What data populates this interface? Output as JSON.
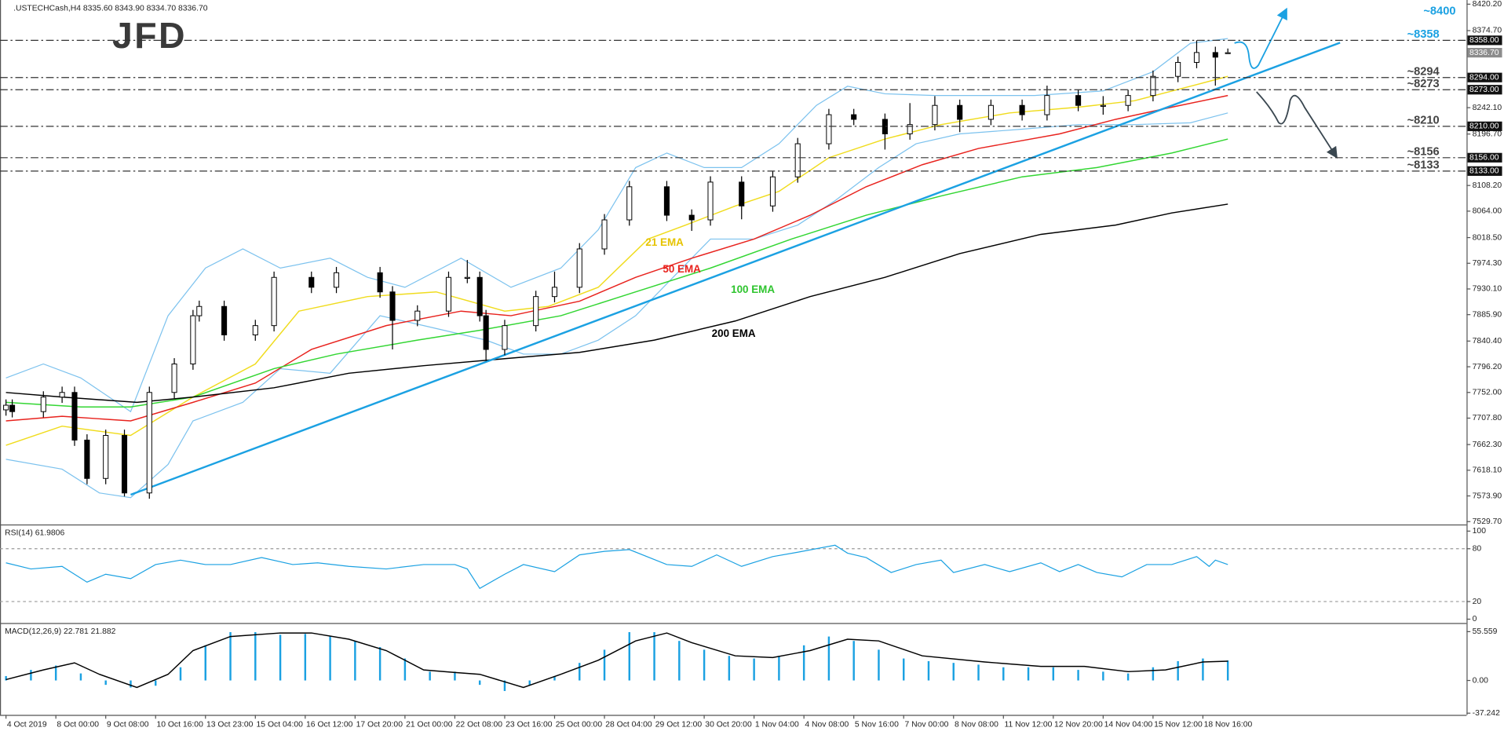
{
  "chart_data": [
    {
      "type": "candlestick",
      "title": ".USTECHCash,H4  8335.60 8343.90 8334.70 8336.70",
      "logo": "JFD",
      "target_label": "~8400",
      "x": [
        0,
        1,
        6,
        9,
        11,
        13,
        16,
        19,
        23,
        27,
        30,
        31,
        35,
        40,
        43,
        49,
        53,
        60,
        62,
        66,
        71,
        74,
        76,
        77,
        80,
        85,
        88,
        92,
        96,
        100,
        106,
        110,
        113,
        118,
        123,
        127,
        132,
        136,
        141,
        145,
        149,
        153,
        158,
        163,
        167,
        172,
        176,
        180,
        184,
        188,
        191,
        194,
        196
      ],
      "open": [
        7722,
        7730,
        7719,
        7744,
        7752,
        7670,
        7604,
        7678,
        7579,
        7752,
        7801,
        7884,
        7900,
        7851,
        7867,
        7950,
        7933,
        7958,
        7925,
        7876,
        7892,
        7950,
        7950,
        7884,
        7826,
        7867,
        7917,
        7933,
        7999,
        8049,
        8106,
        8057,
        8049,
        8114,
        8073,
        8123,
        8180,
        8230,
        8222,
        8197,
        8213,
        8246,
        8222,
        8246,
        8230,
        8263,
        8246,
        8246,
        8263,
        8296,
        8320,
        8337,
        8335.6
      ],
      "high": [
        7740,
        7740,
        7754,
        7762,
        7762,
        7680,
        7688,
        7688,
        7762,
        7811,
        7894,
        7910,
        7910,
        7877,
        7960,
        7960,
        7968,
        7968,
        7935,
        7902,
        7960,
        7980,
        7960,
        7894,
        7877,
        7927,
        7960,
        8009,
        8059,
        8116,
        8116,
        8067,
        8124,
        8124,
        8133,
        8190,
        8240,
        8240,
        8232,
        8250,
        8262,
        8256,
        8256,
        8256,
        8280,
        8273,
        8262,
        8273,
        8306,
        8330,
        8358,
        8347,
        8343.9
      ],
      "low": [
        7712,
        7709,
        7709,
        7734,
        7660,
        7594,
        7594,
        7573,
        7569,
        7742,
        7791,
        7874,
        7841,
        7841,
        7857,
        7923,
        7923,
        7915,
        7826,
        7866,
        7882,
        7940,
        7874,
        7806,
        7816,
        7857,
        7907,
        7923,
        7989,
        8039,
        8047,
        8030,
        8039,
        8050,
        8063,
        8113,
        8170,
        8212,
        8170,
        8187,
        8203,
        8200,
        8212,
        8220,
        8220,
        8236,
        8230,
        8236,
        8253,
        8286,
        8310,
        8280,
        8334.7
      ],
      "close": [
        7730,
        7719,
        7744,
        7752,
        7670,
        7604,
        7678,
        7579,
        7752,
        7801,
        7884,
        7900,
        7851,
        7867,
        7950,
        7933,
        7958,
        7925,
        7876,
        7892,
        7950,
        7950,
        7884,
        7826,
        7867,
        7917,
        7933,
        7999,
        8049,
        8106,
        8057,
        8049,
        8114,
        8073,
        8123,
        8180,
        8230,
        8222,
        8197,
        8213,
        8246,
        8222,
        8246,
        8230,
        8263,
        8246,
        8246,
        8263,
        8296,
        8320,
        8337,
        8329,
        8336.7
      ],
      "up_color": "#ffffff",
      "down_color": "#000000",
      "xlim": [
        -0.5,
        234.3
      ],
      "ylim": [
        7524.8,
        8424.1
      ],
      "yticks": [
        {
          "value": 8420.2,
          "label": "8420.20"
        },
        {
          "value": 8374.7,
          "label": "8374.70"
        },
        {
          "value": 8242.1,
          "label": "8242.10"
        },
        {
          "value": 8196.7,
          "label": "8196.70"
        },
        {
          "value": 8108.2,
          "label": "8108.20"
        },
        {
          "value": 8064,
          "label": "8064.00"
        },
        {
          "value": 8018.5,
          "label": "8018.50"
        },
        {
          "value": 7974.3,
          "label": "7974.30"
        },
        {
          "value": 7930.1,
          "label": "7930.10"
        },
        {
          "value": 7885.9,
          "label": "7885.90"
        },
        {
          "value": 7840.4,
          "label": "7840.40"
        },
        {
          "value": 7796.2,
          "label": "7796.20"
        },
        {
          "value": 7752,
          "label": "7752.00"
        },
        {
          "value": 7707.8,
          "label": "7707.80"
        },
        {
          "value": 7662.3,
          "label": "7662.30"
        },
        {
          "value": 7618.1,
          "label": "7618.10"
        },
        {
          "value": 7573.9,
          "label": "7573.90"
        },
        {
          "value": 7529.7,
          "label": "7529.70"
        }
      ],
      "xticks": [
        {
          "value": 0,
          "label": "4 Oct 2019"
        },
        {
          "value": 8,
          "label": "8 Oct 00:00"
        },
        {
          "value": 16,
          "label": "9 Oct 08:00"
        },
        {
          "value": 24,
          "label": "10 Oct 16:00"
        },
        {
          "value": 32,
          "label": "13 Oct 23:00"
        },
        {
          "value": 40,
          "label": "15 Oct 04:00"
        },
        {
          "value": 48,
          "label": "16 Oct 12:00"
        },
        {
          "value": 56,
          "label": "17 Oct 20:00"
        },
        {
          "value": 64,
          "label": "21 Oct 00:00"
        },
        {
          "value": 72,
          "label": "22 Oct 08:00"
        },
        {
          "value": 80,
          "label": "23 Oct 16:00"
        },
        {
          "value": 88,
          "label": "25 Oct 00:00"
        },
        {
          "value": 96,
          "label": "28 Oct 04:00"
        },
        {
          "value": 104,
          "label": "29 Oct 12:00"
        },
        {
          "value": 112,
          "label": "30 Oct 20:00"
        },
        {
          "value": 120,
          "label": "1 Nov 04:00"
        },
        {
          "value": 128,
          "label": "4 Nov 08:00"
        },
        {
          "value": 136,
          "label": "5 Nov 16:00"
        },
        {
          "value": 144,
          "label": "7 Nov 00:00"
        },
        {
          "value": 152,
          "label": "8 Nov 08:00"
        },
        {
          "value": 160,
          "label": "11 Nov 12:00"
        },
        {
          "value": 168,
          "label": "12 Nov 20:00"
        },
        {
          "value": 176,
          "label": "14 Nov 04:00"
        },
        {
          "value": 184,
          "label": "15 Nov 12:00"
        },
        {
          "value": 192,
          "label": "18 Nov 16:00"
        }
      ],
      "lines": [
        {
          "name": "21 EMA",
          "color": "#f0dc1e",
          "label_color": "#e6c300",
          "x": [
            0,
            9,
            20,
            30,
            40,
            47,
            58,
            69,
            80,
            87,
            95,
            103,
            109,
            117,
            124,
            132,
            141,
            150,
            161,
            172,
            181,
            190,
            196
          ],
          "values": [
            7661,
            7694,
            7678,
            7744,
            7801,
            7892,
            7917,
            7925,
            7892,
            7900,
            7933,
            8016,
            8040,
            8073,
            8098,
            8156,
            8188,
            8213,
            8233,
            8243,
            8254,
            8279,
            8296
          ]
        },
        {
          "name": "50 EMA",
          "color": "#e8231e",
          "label_color": "#e8231e",
          "x": [
            0,
            9,
            20,
            30,
            40,
            49,
            61,
            73,
            81,
            92,
            101,
            110,
            120,
            129,
            138,
            147,
            156,
            169,
            178,
            187,
            196
          ],
          "values": [
            7703,
            7711,
            7703,
            7735,
            7768,
            7826,
            7867,
            7892,
            7884,
            7909,
            7950,
            7983,
            8016,
            8057,
            8106,
            8144,
            8172,
            8197,
            8222,
            8243,
            8263
          ]
        },
        {
          "name": "100 EMA",
          "color": "#33d633",
          "label_color": "#2ec42e",
          "x": [
            0,
            12,
            20,
            30,
            43,
            53,
            66,
            76,
            89,
            101,
            113,
            126,
            138,
            150,
            163,
            175,
            187,
            196
          ],
          "values": [
            7735,
            7727,
            7727,
            7744,
            7793,
            7818,
            7842,
            7859,
            7884,
            7925,
            7966,
            8016,
            8057,
            8090,
            8123,
            8139,
            8164,
            8188
          ]
        },
        {
          "name": "200 EMA",
          "color": "#000000",
          "label_color": "#000000",
          "x": [
            0,
            9,
            21,
            30,
            43,
            55,
            67,
            80,
            92,
            104,
            117,
            129,
            141,
            153,
            166,
            178,
            187,
            196
          ],
          "values": [
            7752,
            7744,
            7735,
            7744,
            7760,
            7785,
            7798,
            7810,
            7821,
            7842,
            7875,
            7917,
            7950,
            7991,
            8024,
            8040,
            8061,
            8076
          ]
        }
      ],
      "bands": {
        "color": "#7cc2ee",
        "upper": {
          "x": [
            0,
            6,
            12,
            20,
            26,
            32,
            38,
            44,
            52,
            58,
            64,
            73,
            81,
            89,
            95,
            101,
            106,
            112,
            118,
            124,
            130,
            135,
            141,
            149,
            156,
            165,
            176,
            184,
            190,
            196
          ],
          "values": [
            7777,
            7801,
            7777,
            7719,
            7884,
            7966,
            7999,
            7966,
            7983,
            7950,
            7933,
            7983,
            7933,
            7966,
            8032,
            8139,
            8164,
            8139,
            8139,
            8180,
            8246,
            8279,
            8266,
            8263,
            8263,
            8263,
            8271,
            8304,
            8353,
            8361
          ]
        },
        "lower": {
          "x": [
            0,
            9,
            15,
            20,
            26,
            30,
            38,
            44,
            52,
            60,
            67,
            77,
            83,
            89,
            95,
            101,
            107,
            113,
            120,
            127,
            133,
            140,
            146,
            153,
            163,
            172,
            181,
            190,
            196
          ],
          "values": [
            7637,
            7620,
            7579,
            7571,
            7628,
            7703,
            7735,
            7793,
            7785,
            7884,
            7867,
            7842,
            7818,
            7818,
            7842,
            7884,
            7950,
            8016,
            8016,
            8040,
            8082,
            8139,
            8180,
            8197,
            8205,
            8213,
            8213,
            8216,
            8233
          ]
        }
      },
      "trendline": {
        "color": "#1ba1e2",
        "x": [
          20,
          214
        ],
        "values": [
          7576,
          8354
        ]
      },
      "levels": [
        {
          "value": 8358,
          "label": "8358.00",
          "annotation": "~8358",
          "color": "#1ba1e2"
        },
        {
          "value": 8294,
          "label": "8294.00",
          "annotation": "~8294",
          "color": "#444444"
        },
        {
          "value": 8273,
          "label": "8273.00",
          "annotation": "~8273",
          "color": "#444444"
        },
        {
          "value": 8210,
          "label": "8210.00",
          "annotation": "~8210",
          "color": "#444444"
        },
        {
          "value": 8156,
          "label": "8156.00",
          "annotation": "~8156",
          "color": "#444444"
        },
        {
          "value": 8133,
          "label": "8133.00",
          "annotation": "~8133",
          "color": "#444444"
        }
      ],
      "current_price": {
        "value": 8336.7,
        "label": "8336.70"
      }
    },
    {
      "type": "line",
      "title": "RSI(14) 61.9806",
      "x": [
        0,
        4,
        9,
        13,
        16,
        20,
        24,
        28,
        32,
        36,
        41,
        46,
        50,
        55,
        61,
        67,
        72,
        74,
        76,
        80,
        83,
        88,
        92,
        96,
        100,
        106,
        110,
        114,
        118,
        123,
        127,
        133,
        135,
        138,
        142,
        146,
        150,
        152,
        157,
        161,
        166,
        169,
        172,
        175,
        179,
        183,
        187,
        191,
        193,
        194,
        196
      ],
      "values": [
        64,
        57,
        60,
        42,
        51,
        46,
        62,
        67,
        62,
        62,
        70,
        62,
        64,
        60,
        57,
        62,
        62,
        57,
        35,
        51,
        62,
        54,
        73,
        77,
        79,
        62,
        60,
        73,
        60,
        71,
        76,
        84,
        75,
        70,
        53,
        62,
        67,
        53,
        62,
        54,
        64,
        54,
        62,
        53,
        48,
        62,
        62,
        71,
        60,
        67,
        62
      ],
      "color": "#1ba1e2",
      "ylim": [
        -3.3,
        104.3
      ],
      "yticks": [
        100,
        80,
        20,
        0
      ],
      "grid": true
    },
    {
      "type": "macd",
      "title": "MACD(12,26,9) 22.781 21.882",
      "histogram": {
        "color": "#1ba1e2",
        "x": [
          0,
          4,
          8,
          12,
          16,
          20,
          24,
          28,
          32,
          36,
          40,
          44,
          48,
          52,
          56,
          60,
          64,
          68,
          72,
          76,
          80,
          84,
          88,
          92,
          96,
          100,
          104,
          108,
          112,
          116,
          120,
          124,
          128,
          132,
          136,
          140,
          144,
          148,
          152,
          156,
          160,
          164,
          168,
          172,
          176,
          180,
          184,
          188,
          192,
          196
        ],
        "values": [
          5,
          12,
          17,
          8,
          -5,
          -8,
          -6,
          15,
          40,
          55,
          55,
          52,
          53,
          50,
          45,
          38,
          25,
          10,
          10,
          -5,
          -12,
          -5,
          5,
          20,
          35,
          55,
          55,
          45,
          35,
          28,
          25,
          28,
          40,
          50,
          45,
          35,
          25,
          22,
          20,
          18,
          15,
          15,
          15,
          12,
          10,
          8,
          15,
          22,
          25,
          22.781
        ]
      },
      "signal": {
        "color": "#000000",
        "x": [
          0,
          6,
          11,
          15,
          21,
          26,
          30,
          36,
          44,
          49,
          55,
          61,
          67,
          72,
          76,
          83,
          89,
          95,
          101,
          106,
          110,
          117,
          123,
          129,
          135,
          140,
          147,
          157,
          166,
          173,
          180,
          186,
          192,
          196
        ],
        "values": [
          1,
          12,
          20,
          7,
          -8,
          7,
          34,
          50,
          54,
          54,
          47,
          34,
          12,
          9,
          7,
          -8,
          7,
          23,
          45,
          54,
          43,
          28,
          26,
          34,
          47,
          45,
          28,
          21,
          16,
          16,
          10,
          12,
          21,
          21.882
        ]
      },
      "ylim": [
        -40.3,
        62.1
      ],
      "yticks": [
        55.559,
        {
          "value": 0,
          "label": "0.00"
        },
        -37.242
      ]
    }
  ]
}
